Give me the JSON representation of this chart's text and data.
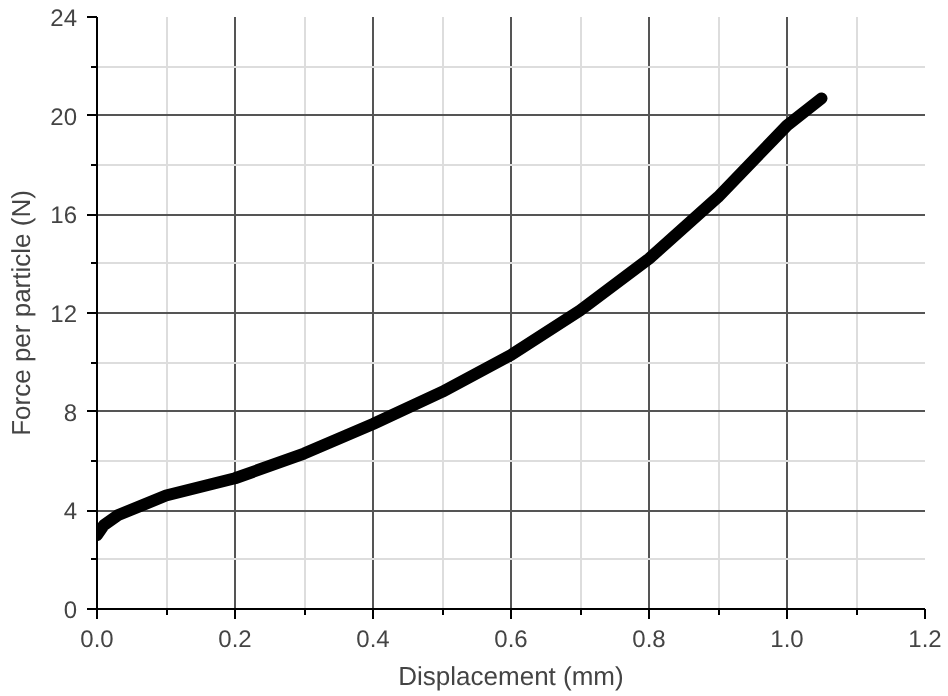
{
  "chart_data": {
    "type": "line",
    "xlabel": "Displacement (mm)",
    "ylabel": "Force per particle (N)",
    "x": [
      0,
      0.01,
      0.03,
      0.1,
      0.2,
      0.3,
      0.4,
      0.5,
      0.6,
      0.7,
      0.8,
      0.9,
      1.0,
      1.05
    ],
    "series": [
      {
        "color": "#000000",
        "values": [
          3.0,
          3.4,
          3.8,
          4.6,
          5.3,
          6.3,
          7.5,
          8.8,
          10.3,
          12.1,
          14.2,
          16.7,
          19.6,
          20.7
        ]
      }
    ],
    "xlim": [
      0,
      1.2
    ],
    "xticks": [
      {
        "value": 0,
        "label": "0.0"
      },
      0.2,
      0.4,
      0.6,
      0.8,
      {
        "value": 1,
        "label": "1.0"
      },
      1.2
    ],
    "ylim": [
      0,
      24
    ],
    "yticks": [
      0,
      4,
      8,
      12,
      16,
      20,
      24
    ],
    "grid": true
  }
}
